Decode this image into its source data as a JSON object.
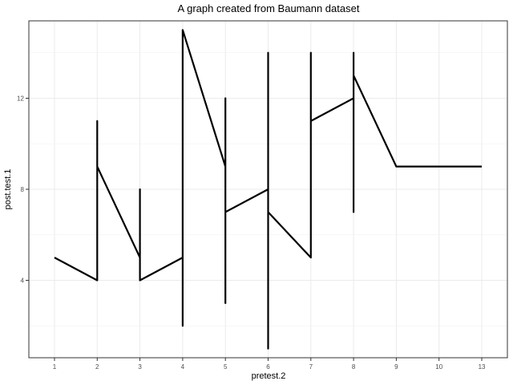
{
  "chart_data": {
    "type": "line",
    "title": "A graph created from Baumann dataset",
    "xlabel": "pretest.2",
    "ylabel": "post.test.1",
    "x_categories": [
      "1",
      "2",
      "3",
      "4",
      "5",
      "6",
      "7",
      "8",
      "9",
      "10",
      "13"
    ],
    "ylim": [
      0.6,
      15.4
    ],
    "y_ticks": [
      4,
      8,
      12
    ],
    "y_tick_labels": [
      "4",
      "8",
      "12"
    ],
    "grid": true,
    "series": [
      {
        "color": "#000000",
        "points": [
          [
            "1",
            5
          ],
          [
            "2",
            4
          ],
          [
            "2",
            11
          ],
          [
            "2",
            9
          ],
          [
            "3",
            5
          ],
          [
            "3",
            8
          ],
          [
            "3",
            4
          ],
          [
            "4",
            5
          ],
          [
            "4",
            2
          ],
          [
            "4",
            15
          ],
          [
            "5",
            9
          ],
          [
            "5",
            12
          ],
          [
            "5",
            3
          ],
          [
            "5",
            7
          ],
          [
            "6",
            8
          ],
          [
            "6",
            14
          ],
          [
            "6",
            1
          ],
          [
            "6",
            7
          ],
          [
            "7",
            5
          ],
          [
            "7",
            14
          ],
          [
            "7",
            11
          ],
          [
            "8",
            12
          ],
          [
            "8",
            14
          ],
          [
            "8",
            7
          ],
          [
            "8",
            13
          ],
          [
            "9",
            9
          ],
          [
            "10",
            9
          ],
          [
            "13",
            9
          ]
        ]
      }
    ]
  }
}
